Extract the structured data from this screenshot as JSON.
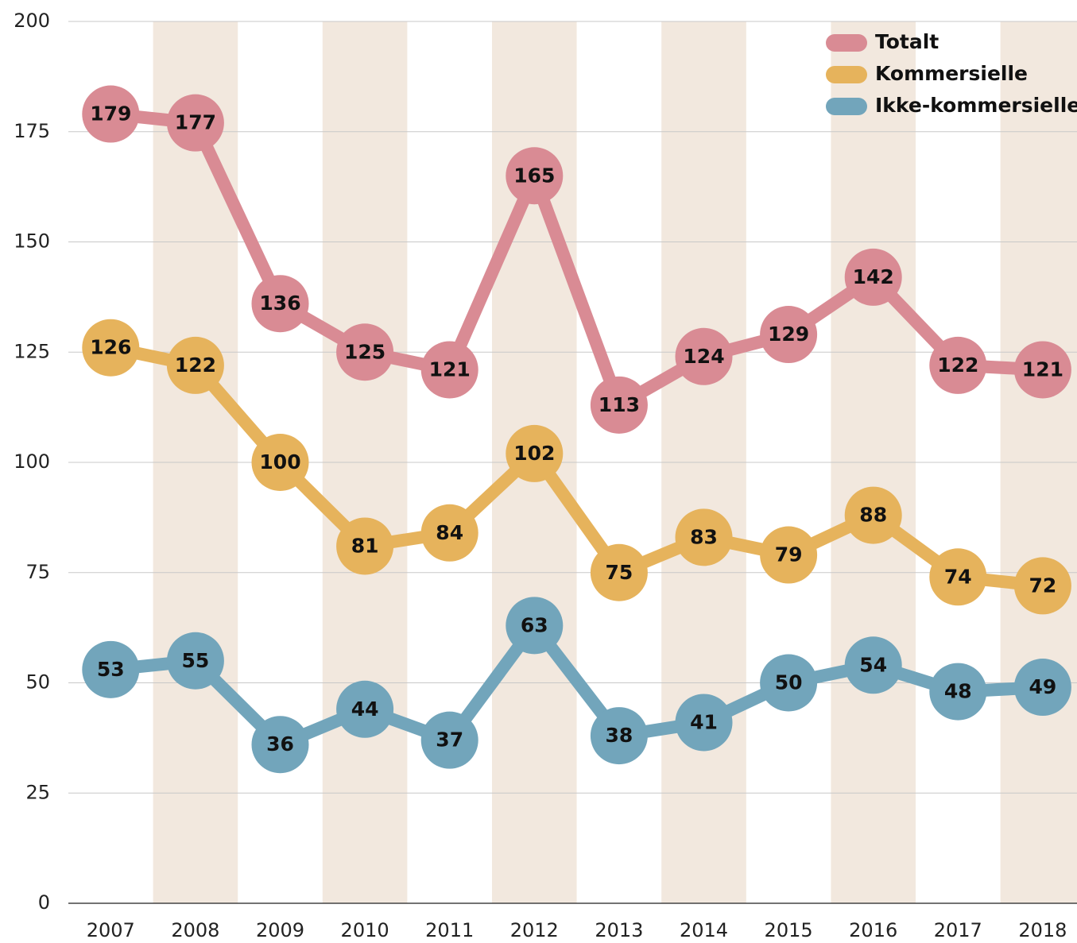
{
  "chart_data": {
    "type": "line",
    "categories": [
      "2007",
      "2008",
      "2009",
      "2010",
      "2011",
      "2012",
      "2013",
      "2014",
      "2015",
      "2016",
      "2017",
      "2018"
    ],
    "series": [
      {
        "name": "Totalt",
        "color": "#d98b94",
        "values": [
          179,
          177,
          136,
          125,
          121,
          165,
          113,
          124,
          129,
          142,
          122,
          121
        ]
      },
      {
        "name": "Kommersielle",
        "color": "#e6b35c",
        "values": [
          126,
          122,
          100,
          81,
          84,
          102,
          75,
          83,
          79,
          88,
          74,
          72
        ]
      },
      {
        "name": "Ikke-kommersielle",
        "color": "#72a5bb",
        "values": [
          53,
          55,
          36,
          44,
          37,
          63,
          38,
          41,
          50,
          54,
          48,
          49
        ]
      }
    ],
    "ylim": [
      0,
      200
    ],
    "yticks": [
      0,
      25,
      50,
      75,
      100,
      125,
      150,
      175,
      200
    ],
    "grid": true,
    "legend": "top-right"
  }
}
